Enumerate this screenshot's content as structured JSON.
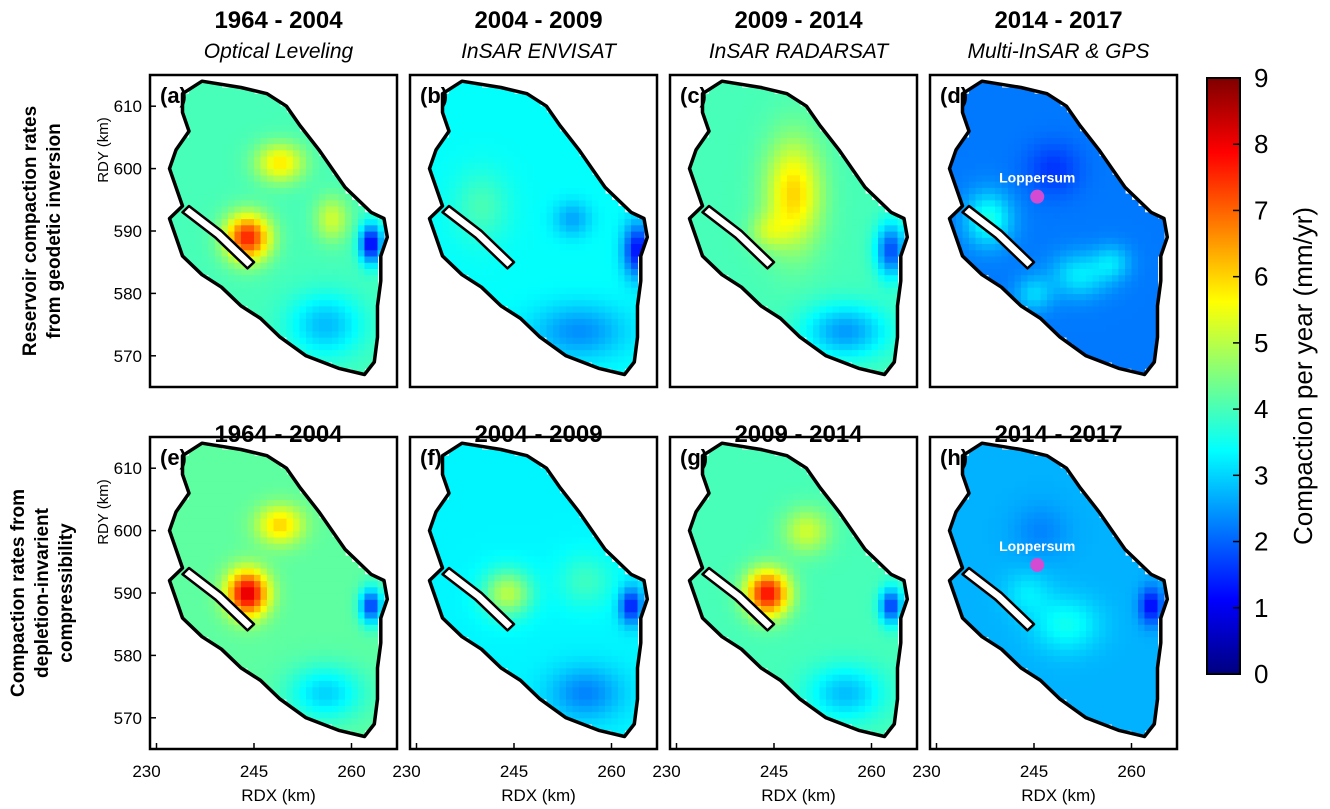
{
  "chart_data": {
    "type": "heatmap",
    "colormap": [
      "#00007f",
      "#0000ff",
      "#007fff",
      "#00ffff",
      "#7fff7f",
      "#ffff00",
      "#ff7f00",
      "#ff0000",
      "#7f0000"
    ],
    "colorbar": {
      "label": "Compaction per year (mm/yr)",
      "range": [
        0,
        9
      ],
      "ticks": [
        "0",
        "1",
        "2",
        "3",
        "4",
        "5",
        "6",
        "7",
        "8",
        "9"
      ]
    },
    "x_axis": {
      "label": "RDX (km)",
      "range": [
        229,
        267
      ],
      "ticks": [
        230,
        245,
        260
      ],
      "tick_labels": [
        "230",
        "245",
        "260"
      ]
    },
    "y_axis": {
      "label": "RDY (km)",
      "range": [
        565,
        615
      ],
      "ticks": [
        570,
        580,
        590,
        600,
        610
      ],
      "tick_labels": [
        "570",
        "580",
        "590",
        "600",
        "610"
      ]
    },
    "row_labels": [
      [
        "Reservoir compaction rates",
        "from geodetic inversion"
      ],
      [
        "Compaction rates from",
        "depletion-invarient",
        "compressibility"
      ]
    ],
    "panels": [
      {
        "row": 0,
        "col": 0,
        "letter": "(a)",
        "title": "1964 - 2004",
        "subtitle": "Optical Leveling",
        "background": 4.0,
        "blobs": [
          {
            "x": 244,
            "y": 589,
            "sx": 2.4,
            "sy": 2.6,
            "v": 3.6
          },
          {
            "x": 249,
            "y": 601,
            "sx": 2.6,
            "sy": 2.2,
            "v": 1.8
          },
          {
            "x": 257,
            "y": 592,
            "sx": 1.8,
            "sy": 2.5,
            "v": 1.2
          },
          {
            "x": 263,
            "y": 588,
            "sx": 1.2,
            "sy": 2.2,
            "v": -3.0
          },
          {
            "x": 256,
            "y": 575,
            "sx": 4,
            "sy": 3.5,
            "v": -1.2
          }
        ]
      },
      {
        "row": 0,
        "col": 1,
        "letter": "(b)",
        "title": "2004 - 2009",
        "subtitle": "InSAR ENVISAT",
        "background": 3.4,
        "blobs": [
          {
            "x": 240,
            "y": 594,
            "sx": 3,
            "sy": 4,
            "v": 0.6
          },
          {
            "x": 254,
            "y": 592,
            "sx": 2,
            "sy": 2,
            "v": -0.8
          },
          {
            "x": 264,
            "y": 587,
            "sx": 1.5,
            "sy": 3,
            "v": -2.2
          },
          {
            "x": 255,
            "y": 574,
            "sx": 5,
            "sy": 3,
            "v": -1.0
          }
        ]
      },
      {
        "row": 0,
        "col": 2,
        "letter": "(c)",
        "title": "2009 - 2014",
        "subtitle": "InSAR RADARSAT",
        "background": 4.0,
        "blobs": [
          {
            "x": 248,
            "y": 596,
            "sx": 3,
            "sy": 6,
            "v": 2.0
          },
          {
            "x": 244,
            "y": 590,
            "sx": 2,
            "sy": 2,
            "v": 0.8
          },
          {
            "x": 263,
            "y": 587,
            "sx": 1.6,
            "sy": 3,
            "v": -2.2
          },
          {
            "x": 256,
            "y": 574,
            "sx": 4.5,
            "sy": 3,
            "v": -1.5
          }
        ]
      },
      {
        "row": 0,
        "col": 3,
        "letter": "(d)",
        "title": "2014 - 2017",
        "subtitle": "Multi-InSAR & GPS",
        "background": 2.2,
        "blobs": [
          {
            "x": 238,
            "y": 592,
            "sx": 2.5,
            "sy": 3,
            "v": 1.4
          },
          {
            "x": 252,
            "y": 583,
            "sx": 3,
            "sy": 2.5,
            "v": 1.0
          },
          {
            "x": 245,
            "y": 580,
            "sx": 2,
            "sy": 2,
            "v": 0.8
          },
          {
            "x": 248,
            "y": 600,
            "sx": 3,
            "sy": 3,
            "v": -0.6
          },
          {
            "x": 257,
            "y": 585,
            "sx": 2,
            "sy": 2,
            "v": 0.8
          }
        ],
        "marker": {
          "x": 245.5,
          "y": 595.5,
          "label": "Loppersum"
        }
      },
      {
        "row": 1,
        "col": 0,
        "letter": "(e)",
        "title": "1964 - 2004",
        "subtitle": "",
        "background": 4.2,
        "blobs": [
          {
            "x": 244,
            "y": 590,
            "sx": 2.2,
            "sy": 2.6,
            "v": 4.0
          },
          {
            "x": 249,
            "y": 601,
            "sx": 2.5,
            "sy": 2.2,
            "v": 1.8
          },
          {
            "x": 263,
            "y": 588,
            "sx": 1.2,
            "sy": 2,
            "v": -2.6
          },
          {
            "x": 256,
            "y": 574,
            "sx": 4,
            "sy": 3,
            "v": -1.2
          }
        ]
      },
      {
        "row": 1,
        "col": 1,
        "letter": "(f)",
        "title": "2004 - 2009",
        "subtitle": "",
        "background": 3.3,
        "blobs": [
          {
            "x": 244,
            "y": 590,
            "sx": 2.6,
            "sy": 2.6,
            "v": 1.7
          },
          {
            "x": 256,
            "y": 592,
            "sx": 3,
            "sy": 3,
            "v": 0.6
          },
          {
            "x": 263,
            "y": 588,
            "sx": 1.2,
            "sy": 2,
            "v": -2.0
          },
          {
            "x": 256,
            "y": 574,
            "sx": 4,
            "sy": 3,
            "v": -1.0
          }
        ]
      },
      {
        "row": 1,
        "col": 2,
        "letter": "(g)",
        "title": "2009 - 2014",
        "subtitle": "",
        "background": 4.0,
        "blobs": [
          {
            "x": 244,
            "y": 590,
            "sx": 2.3,
            "sy": 2.6,
            "v": 3.8
          },
          {
            "x": 250,
            "y": 600,
            "sx": 2.5,
            "sy": 2.5,
            "v": 1.2
          },
          {
            "x": 263,
            "y": 588,
            "sx": 1.2,
            "sy": 2,
            "v": -2.4
          },
          {
            "x": 256,
            "y": 574,
            "sx": 4,
            "sy": 3,
            "v": -1.2
          }
        ]
      },
      {
        "row": 1,
        "col": 3,
        "letter": "(h)",
        "title": "2014 - 2017",
        "subtitle": "",
        "background": 2.7,
        "blobs": [
          {
            "x": 244,
            "y": 590,
            "sx": 2.5,
            "sy": 2.5,
            "v": 0.5
          },
          {
            "x": 250,
            "y": 585,
            "sx": 3.5,
            "sy": 3,
            "v": 0.8
          },
          {
            "x": 263,
            "y": 588,
            "sx": 1.2,
            "sy": 2,
            "v": -1.6
          },
          {
            "x": 246,
            "y": 600,
            "sx": 3,
            "sy": 3,
            "v": -0.4
          }
        ],
        "marker": {
          "x": 245.5,
          "y": 594.5,
          "label": "Loppersum"
        }
      }
    ],
    "outline": [
      [
        237,
        614
      ],
      [
        243,
        613
      ],
      [
        247,
        612
      ],
      [
        250,
        610
      ],
      [
        252,
        607
      ],
      [
        255,
        603
      ],
      [
        257,
        600
      ],
      [
        259,
        597
      ],
      [
        261,
        595
      ],
      [
        263,
        593
      ],
      [
        265,
        592
      ],
      [
        265.5,
        589
      ],
      [
        264.5,
        586
      ],
      [
        264.5,
        582
      ],
      [
        264,
        578
      ],
      [
        264,
        573
      ],
      [
        263.5,
        569
      ],
      [
        262,
        567
      ],
      [
        258,
        568
      ],
      [
        253,
        570
      ],
      [
        249,
        573
      ],
      [
        246,
        576
      ],
      [
        243,
        578
      ],
      [
        240,
        581
      ],
      [
        237,
        583
      ],
      [
        234,
        586
      ],
      [
        233,
        589
      ],
      [
        232,
        592
      ],
      [
        234,
        594
      ],
      [
        233,
        597
      ],
      [
        232,
        600
      ],
      [
        233,
        603
      ],
      [
        235,
        606
      ],
      [
        234,
        609
      ],
      [
        234,
        612
      ]
    ],
    "inlet": [
      [
        235,
        594
      ],
      [
        240,
        590
      ],
      [
        245,
        585
      ],
      [
        244,
        584
      ],
      [
        239,
        589
      ],
      [
        234,
        593
      ]
    ],
    "marker_color": "#d24bd2"
  }
}
